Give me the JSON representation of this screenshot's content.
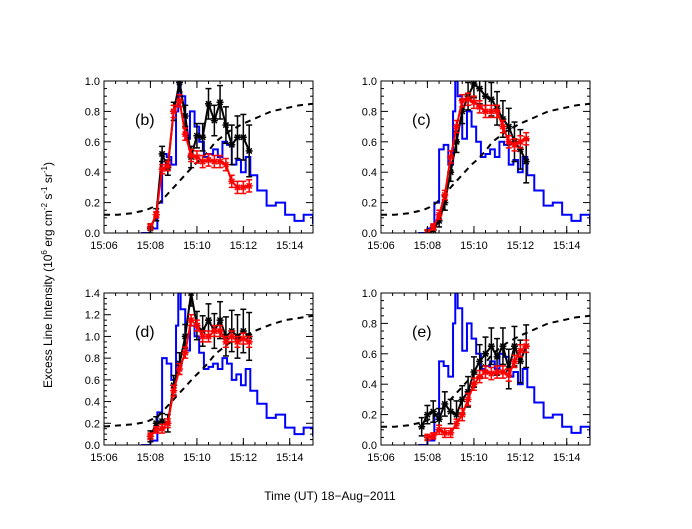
{
  "figure": {
    "ylabel_prefix": "Excess Line Intensity (10",
    "ylabel_exp": "6",
    "ylabel_units": " erg cm",
    "ylabel_sup1": "-2",
    "ylabel_s": " s",
    "ylabel_sup2": "-1",
    "ylabel_sr": " sr",
    "ylabel_sup3": "-1",
    "ylabel_close": ")",
    "xlabel": "Time (UT) 18−Aug−2011"
  },
  "colors": {
    "blue_curve": "#0000ff",
    "red_series": "#ff0000",
    "black_series": "#000000",
    "dashed_curve": "#000000"
  },
  "chart_data": [
    {
      "type": "line",
      "panel_label": "(b)",
      "xlim": [
        15.1,
        15.25
      ],
      "ylim": [
        0,
        1.0
      ],
      "yticks": [
        0.0,
        0.2,
        0.4,
        0.6,
        0.8,
        1.0
      ],
      "ytick_labels": [
        "0.0",
        "0.2",
        "0.4",
        "0.6",
        "0.8",
        "1.0"
      ],
      "xticks": [
        15.1,
        15.1333,
        15.1667,
        15.2,
        15.2333
      ],
      "xtick_labels": [
        "15:06",
        "15:08",
        "15:10",
        "15:12",
        "15:14"
      ],
      "blue": {
        "x": [
          15.1267,
          15.1333,
          15.1383,
          15.1417,
          15.145,
          15.1483,
          15.1517,
          15.1533,
          15.155,
          15.1583,
          15.1617,
          15.165,
          15.1683,
          15.1717,
          15.175,
          15.1783,
          15.1817,
          15.185,
          15.1883,
          15.1917,
          15.195,
          15.1983,
          15.2017,
          15.205,
          15.21,
          15.2167,
          15.2233,
          15.23,
          15.2367,
          15.2433,
          15.25
        ],
        "y": [
          0.0,
          0.03,
          0.2,
          0.52,
          0.5,
          0.45,
          0.8,
          1.0,
          0.9,
          0.62,
          0.8,
          0.7,
          0.6,
          0.5,
          0.52,
          0.55,
          0.5,
          0.6,
          0.58,
          0.45,
          0.48,
          0.4,
          0.5,
          0.38,
          0.28,
          0.18,
          0.2,
          0.12,
          0.08,
          0.12,
          0.06
        ]
      },
      "dashed": {
        "x": [
          15.1,
          15.11,
          15.12,
          15.13,
          15.135,
          15.14,
          15.145,
          15.15,
          15.155,
          15.16,
          15.165,
          15.17,
          15.175,
          15.18,
          15.19,
          15.2,
          15.21,
          15.22,
          15.23,
          15.24,
          15.25
        ],
        "y": [
          0.12,
          0.12,
          0.13,
          0.15,
          0.17,
          0.2,
          0.25,
          0.3,
          0.35,
          0.4,
          0.45,
          0.49,
          0.54,
          0.6,
          0.67,
          0.72,
          0.76,
          0.8,
          0.82,
          0.84,
          0.85
        ]
      },
      "black": {
        "x": [
          15.1333,
          15.1375,
          15.1417,
          15.1458,
          15.15,
          15.1542,
          15.1583,
          15.1625,
          15.1667,
          15.1708,
          15.175,
          15.1792,
          15.1833,
          15.1875,
          15.1917,
          15.1958,
          15.2,
          15.2042
        ],
        "y": [
          0.03,
          0.12,
          0.52,
          0.43,
          0.8,
          0.99,
          0.77,
          0.5,
          0.64,
          0.63,
          0.85,
          0.74,
          0.86,
          0.71,
          0.58,
          0.63,
          0.63,
          0.54
        ],
        "err": [
          0.03,
          0.04,
          0.05,
          0.05,
          0.06,
          0.06,
          0.07,
          0.07,
          0.08,
          0.09,
          0.1,
          0.1,
          0.11,
          0.12,
          0.13,
          0.14,
          0.15,
          0.17
        ]
      },
      "red": {
        "x": [
          15.1333,
          15.1375,
          15.1417,
          15.1458,
          15.15,
          15.1542,
          15.1583,
          15.1625,
          15.1667,
          15.1708,
          15.175,
          15.1792,
          15.1833,
          15.1875,
          15.1917,
          15.1958,
          15.2,
          15.2042
        ],
        "y": [
          0.04,
          0.12,
          0.42,
          0.44,
          0.8,
          0.87,
          0.65,
          0.51,
          0.5,
          0.47,
          0.48,
          0.47,
          0.47,
          0.45,
          0.34,
          0.3,
          0.3,
          0.31
        ],
        "err": [
          0.02,
          0.02,
          0.03,
          0.03,
          0.04,
          0.04,
          0.04,
          0.04,
          0.04,
          0.04,
          0.04,
          0.04,
          0.04,
          0.04,
          0.04,
          0.04,
          0.04,
          0.04
        ]
      }
    },
    {
      "type": "line",
      "panel_label": "(c)",
      "xlim": [
        15.1,
        15.25
      ],
      "ylim": [
        0,
        1.0
      ],
      "yticks": [
        0.0,
        0.2,
        0.4,
        0.6,
        0.8,
        1.0
      ],
      "ytick_labels": [
        "0.0",
        "0.2",
        "0.4",
        "0.6",
        "0.8",
        "1.0"
      ],
      "xticks": [
        15.1,
        15.1333,
        15.1667,
        15.2,
        15.2333
      ],
      "xtick_labels": [
        "15:06",
        "15:08",
        "15:10",
        "15:12",
        "15:14"
      ],
      "blue": {
        "x": [
          15.1267,
          15.1333,
          15.1383,
          15.1417,
          15.145,
          15.1483,
          15.1517,
          15.1533,
          15.155,
          15.1583,
          15.1617,
          15.165,
          15.1683,
          15.1717,
          15.175,
          15.1783,
          15.1817,
          15.185,
          15.1883,
          15.1917,
          15.195,
          15.1983,
          15.2017,
          15.205,
          15.21,
          15.2167,
          15.2233,
          15.23,
          15.2367,
          15.2433,
          15.25
        ],
        "y": [
          0.0,
          0.03,
          0.2,
          0.55,
          0.58,
          0.45,
          0.8,
          1.0,
          0.9,
          0.62,
          0.8,
          0.7,
          0.6,
          0.5,
          0.52,
          0.55,
          0.5,
          0.6,
          0.58,
          0.45,
          0.48,
          0.4,
          0.5,
          0.38,
          0.28,
          0.18,
          0.2,
          0.12,
          0.08,
          0.12,
          0.06
        ]
      },
      "dashed": {
        "x": [
          15.1,
          15.11,
          15.12,
          15.13,
          15.135,
          15.14,
          15.145,
          15.15,
          15.155,
          15.16,
          15.165,
          15.17,
          15.175,
          15.18,
          15.19,
          15.2,
          15.21,
          15.22,
          15.23,
          15.24,
          15.25
        ],
        "y": [
          0.12,
          0.12,
          0.13,
          0.15,
          0.17,
          0.2,
          0.25,
          0.3,
          0.35,
          0.4,
          0.45,
          0.49,
          0.54,
          0.6,
          0.67,
          0.72,
          0.76,
          0.8,
          0.82,
          0.84,
          0.85
        ]
      },
      "black": {
        "x": [
          15.1333,
          15.1375,
          15.1417,
          15.1458,
          15.15,
          15.1542,
          15.1583,
          15.1625,
          15.1667,
          15.1708,
          15.175,
          15.1792,
          15.1833,
          15.1875,
          15.1917,
          15.1958,
          15.2,
          15.2042
        ],
        "y": [
          0.0,
          0.02,
          0.08,
          0.2,
          0.4,
          0.6,
          0.8,
          0.9,
          0.98,
          0.95,
          0.9,
          0.88,
          0.82,
          0.75,
          0.7,
          0.6,
          0.55,
          0.47
        ],
        "err": [
          0.02,
          0.03,
          0.04,
          0.05,
          0.06,
          0.07,
          0.08,
          0.09,
          0.09,
          0.1,
          0.1,
          0.11,
          0.11,
          0.12,
          0.12,
          0.13,
          0.13,
          0.14
        ]
      },
      "red": {
        "x": [
          15.1333,
          15.1375,
          15.1417,
          15.1458,
          15.15,
          15.1542,
          15.1583,
          15.1625,
          15.1667,
          15.1708,
          15.175,
          15.1792,
          15.1833,
          15.1875,
          15.1917,
          15.1958,
          15.2,
          15.2042
        ],
        "y": [
          0.0,
          0.04,
          0.12,
          0.25,
          0.5,
          0.7,
          0.87,
          0.88,
          0.86,
          0.83,
          0.8,
          0.8,
          0.8,
          0.7,
          0.6,
          0.58,
          0.6,
          0.62
        ],
        "err": [
          0.02,
          0.02,
          0.03,
          0.03,
          0.04,
          0.04,
          0.04,
          0.04,
          0.04,
          0.04,
          0.04,
          0.04,
          0.04,
          0.04,
          0.04,
          0.04,
          0.04,
          0.04
        ]
      }
    },
    {
      "type": "line",
      "panel_label": "(d)",
      "xlim": [
        15.1,
        15.25
      ],
      "ylim": [
        0,
        1.4
      ],
      "yticks": [
        0.0,
        0.2,
        0.4,
        0.6,
        0.8,
        1.0,
        1.2,
        1.4
      ],
      "ytick_labels": [
        "0.0",
        "0.2",
        "0.4",
        "0.6",
        "0.8",
        "1.0",
        "1.2",
        "1.4"
      ],
      "xticks": [
        15.1,
        15.1333,
        15.1667,
        15.2,
        15.2333
      ],
      "xtick_labels": [
        "15:06",
        "15:08",
        "15:10",
        "15:12",
        "15:14"
      ],
      "blue": {
        "x": [
          15.1267,
          15.1333,
          15.1383,
          15.1417,
          15.145,
          15.1483,
          15.1517,
          15.1533,
          15.155,
          15.1583,
          15.1617,
          15.165,
          15.1683,
          15.1717,
          15.175,
          15.1783,
          15.1817,
          15.185,
          15.1883,
          15.1917,
          15.195,
          15.1983,
          15.2017,
          15.205,
          15.21,
          15.2167,
          15.2233,
          15.23,
          15.2367,
          15.2433,
          15.25
        ],
        "y": [
          0.0,
          0.04,
          0.3,
          0.8,
          0.75,
          0.6,
          1.1,
          1.4,
          1.25,
          0.87,
          1.1,
          1.0,
          0.85,
          0.7,
          0.72,
          0.75,
          0.7,
          0.8,
          0.75,
          0.6,
          0.65,
          0.55,
          0.7,
          0.5,
          0.38,
          0.25,
          0.28,
          0.16,
          0.1,
          0.16,
          0.08
        ]
      },
      "dashed": {
        "x": [
          15.1,
          15.11,
          15.12,
          15.13,
          15.135,
          15.14,
          15.145,
          15.15,
          15.155,
          15.16,
          15.165,
          15.17,
          15.175,
          15.18,
          15.19,
          15.2,
          15.21,
          15.22,
          15.23,
          15.24,
          15.25
        ],
        "y": [
          0.17,
          0.18,
          0.19,
          0.21,
          0.24,
          0.28,
          0.35,
          0.42,
          0.49,
          0.56,
          0.63,
          0.69,
          0.76,
          0.84,
          0.94,
          1.0,
          1.06,
          1.11,
          1.15,
          1.17,
          1.19
        ]
      },
      "black": {
        "x": [
          15.1333,
          15.1375,
          15.1417,
          15.1458,
          15.15,
          15.1542,
          15.1583,
          15.1625,
          15.1667,
          15.1708,
          15.175,
          15.1792,
          15.1833,
          15.1875,
          15.1917,
          15.1958,
          15.2,
          15.2042
        ],
        "y": [
          0.08,
          0.2,
          0.22,
          0.2,
          0.55,
          0.75,
          1.0,
          1.4,
          1.1,
          1.05,
          1.15,
          1.05,
          1.15,
          1.0,
          1.05,
          1.0,
          1.05,
          1.0
        ],
        "err": [
          0.05,
          0.06,
          0.07,
          0.08,
          0.09,
          0.1,
          0.11,
          0.12,
          0.13,
          0.14,
          0.15,
          0.16,
          0.17,
          0.18,
          0.19,
          0.2,
          0.2,
          0.22
        ]
      },
      "red": {
        "x": [
          15.1333,
          15.1375,
          15.1417,
          15.1458,
          15.15,
          15.1542,
          15.1583,
          15.1625,
          15.1667,
          15.1708,
          15.175,
          15.1792,
          15.1833,
          15.1875,
          15.1917,
          15.1958,
          15.2,
          15.2042
        ],
        "y": [
          0.08,
          0.14,
          0.15,
          0.2,
          0.5,
          0.7,
          0.85,
          1.15,
          1.1,
          1.0,
          1.0,
          1.05,
          1.05,
          0.95,
          1.0,
          0.95,
          0.98,
          0.95
        ],
        "err": [
          0.03,
          0.03,
          0.04,
          0.04,
          0.05,
          0.05,
          0.05,
          0.05,
          0.05,
          0.05,
          0.05,
          0.05,
          0.05,
          0.05,
          0.05,
          0.05,
          0.05,
          0.05
        ]
      }
    },
    {
      "type": "line",
      "panel_label": "(e)",
      "xlim": [
        15.1,
        15.25
      ],
      "ylim": [
        0,
        1.0
      ],
      "yticks": [
        0.0,
        0.2,
        0.4,
        0.6,
        0.8,
        1.0
      ],
      "ytick_labels": [
        "0.0",
        "0.2",
        "0.4",
        "0.6",
        "0.8",
        "1.0"
      ],
      "xticks": [
        15.1,
        15.1333,
        15.1667,
        15.2,
        15.2333
      ],
      "xtick_labels": [
        "15:06",
        "15:08",
        "15:10",
        "15:12",
        "15:14"
      ],
      "blue": {
        "x": [
          15.1267,
          15.1333,
          15.1383,
          15.1417,
          15.145,
          15.1483,
          15.1517,
          15.1533,
          15.155,
          15.1583,
          15.1617,
          15.165,
          15.1683,
          15.1717,
          15.175,
          15.1783,
          15.1817,
          15.185,
          15.1883,
          15.1917,
          15.195,
          15.1983,
          15.2017,
          15.205,
          15.21,
          15.2167,
          15.2233,
          15.23,
          15.2367,
          15.2433,
          15.25
        ],
        "y": [
          0.0,
          0.03,
          0.2,
          0.55,
          0.52,
          0.45,
          0.8,
          1.0,
          0.9,
          0.62,
          0.8,
          0.7,
          0.6,
          0.5,
          0.52,
          0.55,
          0.5,
          0.6,
          0.58,
          0.45,
          0.48,
          0.4,
          0.5,
          0.38,
          0.28,
          0.18,
          0.2,
          0.12,
          0.08,
          0.12,
          0.06
        ]
      },
      "dashed": {
        "x": [
          15.1,
          15.11,
          15.12,
          15.13,
          15.135,
          15.14,
          15.145,
          15.15,
          15.155,
          15.16,
          15.165,
          15.17,
          15.175,
          15.18,
          15.19,
          15.2,
          15.21,
          15.22,
          15.23,
          15.24,
          15.25
        ],
        "y": [
          0.12,
          0.12,
          0.13,
          0.15,
          0.17,
          0.2,
          0.25,
          0.3,
          0.35,
          0.4,
          0.45,
          0.49,
          0.54,
          0.6,
          0.67,
          0.72,
          0.76,
          0.8,
          0.82,
          0.84,
          0.85
        ]
      },
      "black": {
        "x": [
          15.1292,
          15.1333,
          15.1375,
          15.1417,
          15.1458,
          15.15,
          15.1542,
          15.1583,
          15.1625,
          15.1667,
          15.1708,
          15.175,
          15.1792,
          15.1833,
          15.1875,
          15.1917,
          15.1958,
          15.2,
          15.2042
        ],
        "y": [
          0.12,
          0.2,
          0.22,
          0.17,
          0.27,
          0.22,
          0.2,
          0.3,
          0.35,
          0.48,
          0.55,
          0.6,
          0.65,
          0.58,
          0.65,
          0.5,
          0.65,
          0.55,
          0.65
        ],
        "err": [
          0.06,
          0.06,
          0.07,
          0.07,
          0.08,
          0.08,
          0.09,
          0.09,
          0.1,
          0.1,
          0.11,
          0.11,
          0.12,
          0.12,
          0.12,
          0.13,
          0.13,
          0.14,
          0.14
        ]
      },
      "red": {
        "x": [
          15.1333,
          15.1375,
          15.1417,
          15.1458,
          15.15,
          15.1542,
          15.1583,
          15.1625,
          15.1667,
          15.1708,
          15.175,
          15.1792,
          15.1833,
          15.1875,
          15.1917,
          15.1958,
          15.2,
          15.2042
        ],
        "y": [
          0.05,
          0.06,
          0.1,
          0.08,
          0.08,
          0.14,
          0.2,
          0.3,
          0.4,
          0.45,
          0.48,
          0.47,
          0.48,
          0.48,
          0.46,
          0.55,
          0.62,
          0.65
        ],
        "err": [
          0.02,
          0.02,
          0.03,
          0.03,
          0.03,
          0.03,
          0.04,
          0.04,
          0.04,
          0.04,
          0.04,
          0.04,
          0.04,
          0.04,
          0.04,
          0.04,
          0.04,
          0.04
        ]
      }
    }
  ]
}
